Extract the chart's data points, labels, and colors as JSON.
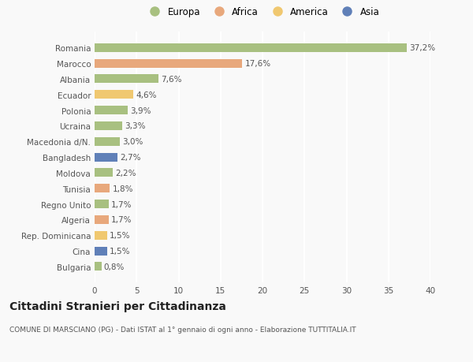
{
  "categories": [
    "Romania",
    "Marocco",
    "Albania",
    "Ecuador",
    "Polonia",
    "Ucraina",
    "Macedonia d/N.",
    "Bangladesh",
    "Moldova",
    "Tunisia",
    "Regno Unito",
    "Algeria",
    "Rep. Dominicana",
    "Cina",
    "Bulgaria"
  ],
  "values": [
    37.2,
    17.6,
    7.6,
    4.6,
    3.9,
    3.3,
    3.0,
    2.7,
    2.2,
    1.8,
    1.7,
    1.7,
    1.5,
    1.5,
    0.8
  ],
  "labels": [
    "37,2%",
    "17,6%",
    "7,6%",
    "4,6%",
    "3,9%",
    "3,3%",
    "3,0%",
    "2,7%",
    "2,2%",
    "1,8%",
    "1,7%",
    "1,7%",
    "1,5%",
    "1,5%",
    "0,8%"
  ],
  "colors": [
    "#a8c080",
    "#e8a87c",
    "#a8c080",
    "#f0c870",
    "#a8c080",
    "#a8c080",
    "#a8c080",
    "#6080b8",
    "#a8c080",
    "#e8a87c",
    "#a8c080",
    "#e8a87c",
    "#f0c870",
    "#6080b8",
    "#a8c080"
  ],
  "continent_colors": {
    "Europa": "#a8c080",
    "Africa": "#e8a87c",
    "America": "#f0c870",
    "Asia": "#6080b8"
  },
  "title": "Cittadini Stranieri per Cittadinanza",
  "subtitle": "COMUNE DI MARSCIANO (PG) - Dati ISTAT al 1° gennaio di ogni anno - Elaborazione TUTTITALIA.IT",
  "xlim": [
    0,
    40
  ],
  "xticks": [
    0,
    5,
    10,
    15,
    20,
    25,
    30,
    35,
    40
  ],
  "background_color": "#f9f9f9",
  "grid_color": "#ffffff",
  "bar_height": 0.55,
  "label_fontsize": 7.5,
  "tick_fontsize": 7.5,
  "title_fontsize": 10,
  "subtitle_fontsize": 6.5
}
